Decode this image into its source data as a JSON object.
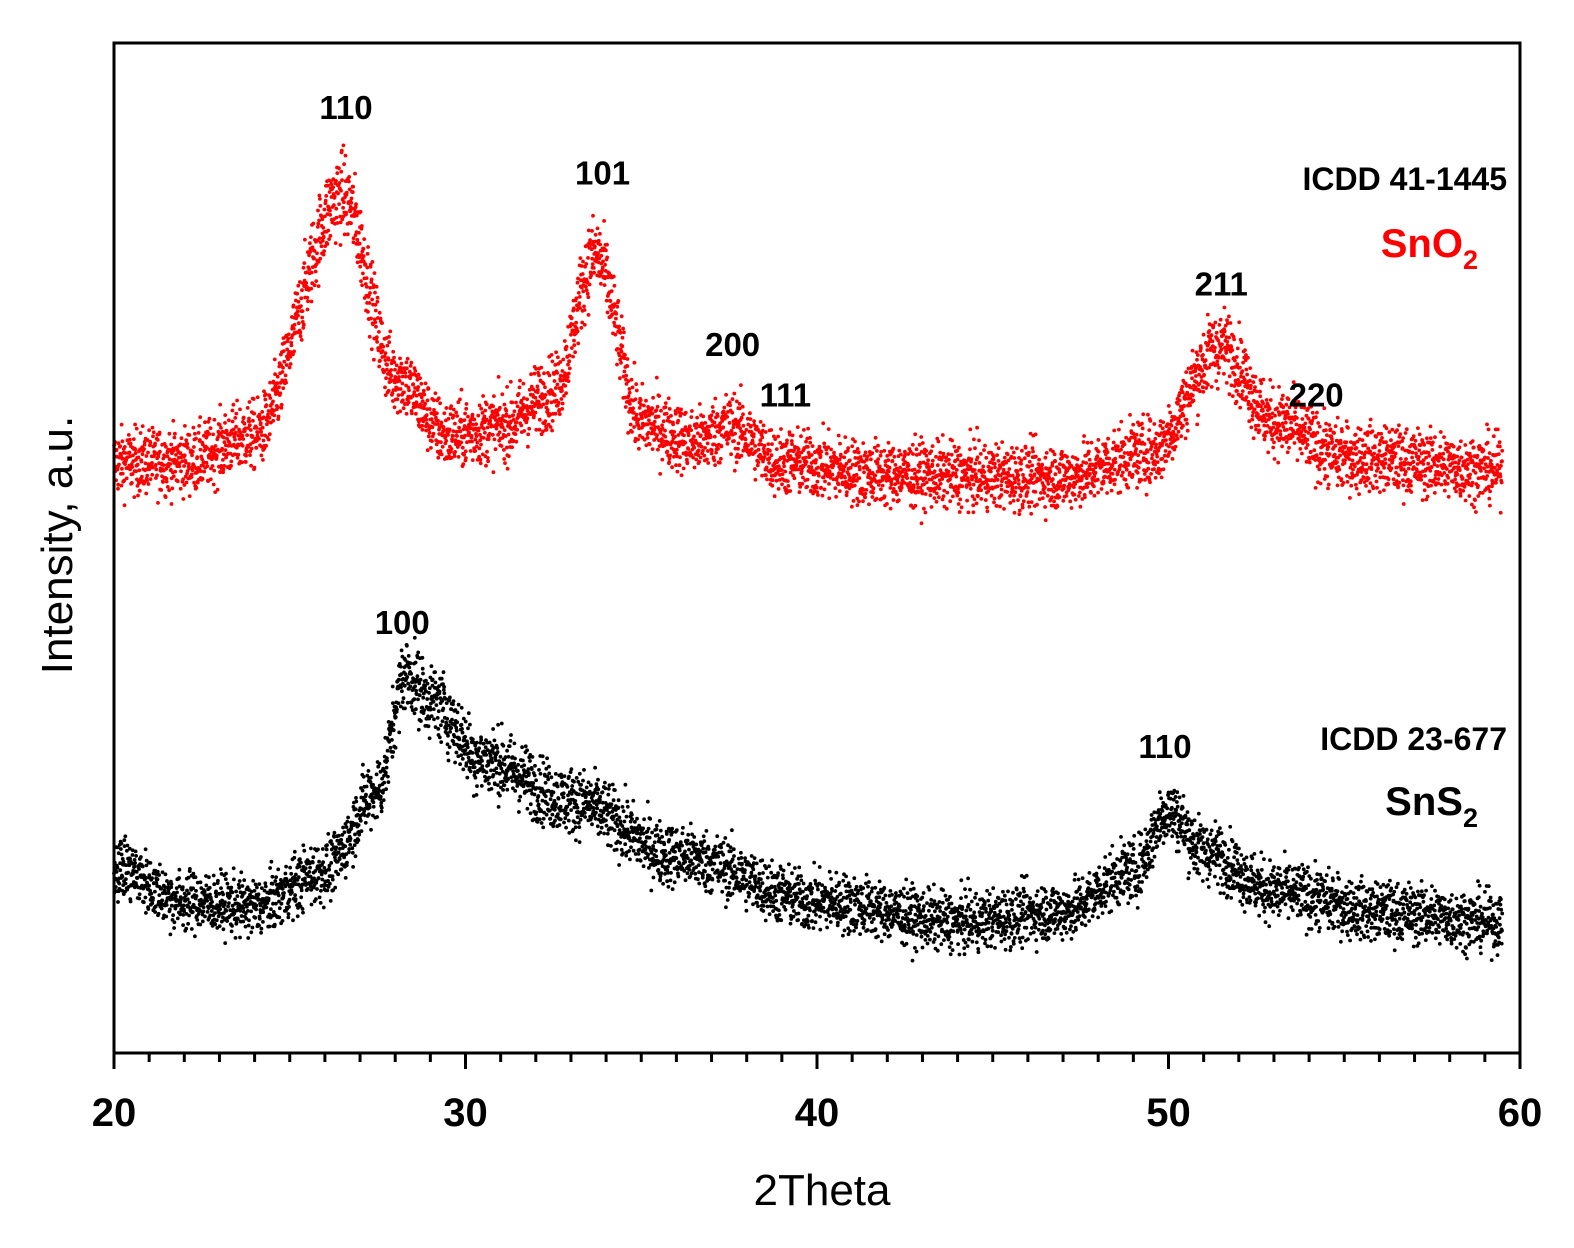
{
  "chart_data": {
    "type": "scatter",
    "title": "",
    "xlabel": "2Theta",
    "ylabel": "Intensity, a.u.",
    "xlim": [
      20,
      60
    ],
    "ylim": [
      0,
      100
    ],
    "x_ticks": [
      20,
      30,
      40,
      50,
      60
    ],
    "x_tick_labels": [
      "20",
      "30",
      "40",
      "50",
      "60"
    ],
    "y_ticks_labeled": false,
    "grid": false,
    "series": [
      {
        "name": "SnO2",
        "name_main": "SnO",
        "name_sub": "2",
        "reference": "ICDD 41-1445",
        "color": "#ff0000",
        "baseline": 56,
        "noise": 1.6,
        "x_range": [
          20,
          59.5
        ],
        "profile": [
          {
            "x": 20.0,
            "y": 58.5
          },
          {
            "x": 22.0,
            "y": 58.6
          },
          {
            "x": 24.0,
            "y": 61.2
          },
          {
            "x": 26.5,
            "y": 85.0
          },
          {
            "x": 28.0,
            "y": 67.0
          },
          {
            "x": 29.5,
            "y": 61.2
          },
          {
            "x": 31.0,
            "y": 62.0
          },
          {
            "x": 32.5,
            "y": 65.5
          },
          {
            "x": 33.7,
            "y": 79.0
          },
          {
            "x": 35.0,
            "y": 62.5
          },
          {
            "x": 36.5,
            "y": 60.5
          },
          {
            "x": 37.5,
            "y": 62.0
          },
          {
            "x": 39.0,
            "y": 58.5
          },
          {
            "x": 42.0,
            "y": 57.3
          },
          {
            "x": 47.0,
            "y": 57.0
          },
          {
            "x": 49.5,
            "y": 59.5
          },
          {
            "x": 51.5,
            "y": 70.0
          },
          {
            "x": 53.0,
            "y": 62.5
          },
          {
            "x": 55.0,
            "y": 59.0
          },
          {
            "x": 59.5,
            "y": 57.8
          }
        ],
        "peak_labels": [
          {
            "label": "110",
            "x": 26.6,
            "y": 92.5
          },
          {
            "label": "101",
            "x": 33.9,
            "y": 86.0
          },
          {
            "label": "200",
            "x": 37.6,
            "y": 69.0
          },
          {
            "label": "111",
            "x": 39.1,
            "y": 64.0
          },
          {
            "label": "211",
            "x": 51.5,
            "y": 75.0
          },
          {
            "label": "220",
            "x": 54.2,
            "y": 64.0
          }
        ]
      },
      {
        "name": "SnS2",
        "name_main": "SnS",
        "name_sub": "2",
        "reference": "ICDD 23-677",
        "color": "#000000",
        "baseline": 10,
        "noise": 1.4,
        "x_range": [
          20,
          59.5
        ],
        "profile": [
          {
            "x": 20.0,
            "y": 18.5
          },
          {
            "x": 22.0,
            "y": 15.0
          },
          {
            "x": 24.0,
            "y": 14.5
          },
          {
            "x": 26.0,
            "y": 18.0
          },
          {
            "x": 27.5,
            "y": 26.0
          },
          {
            "x": 28.3,
            "y": 37.5
          },
          {
            "x": 29.0,
            "y": 35.0
          },
          {
            "x": 30.5,
            "y": 29.0
          },
          {
            "x": 33.0,
            "y": 25.0
          },
          {
            "x": 36.0,
            "y": 19.5
          },
          {
            "x": 40.0,
            "y": 15.0
          },
          {
            "x": 44.0,
            "y": 13.0
          },
          {
            "x": 47.0,
            "y": 14.0
          },
          {
            "x": 49.0,
            "y": 18.0
          },
          {
            "x": 50.0,
            "y": 24.0
          },
          {
            "x": 51.0,
            "y": 20.0
          },
          {
            "x": 53.0,
            "y": 16.0
          },
          {
            "x": 56.0,
            "y": 14.0
          },
          {
            "x": 59.5,
            "y": 13.0
          }
        ],
        "peak_labels": [
          {
            "label": "100",
            "x": 28.2,
            "y": 41.5
          },
          {
            "label": "110",
            "x": 49.9,
            "y": 29.2
          }
        ]
      }
    ]
  }
}
